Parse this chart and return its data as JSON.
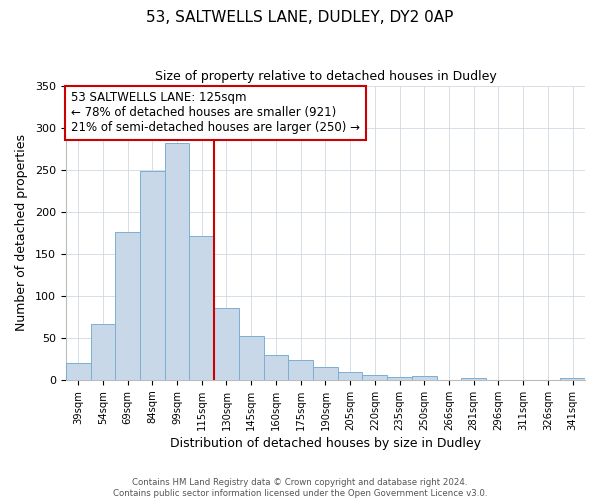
{
  "title": "53, SALTWELLS LANE, DUDLEY, DY2 0AP",
  "subtitle": "Size of property relative to detached houses in Dudley",
  "xlabel": "Distribution of detached houses by size in Dudley",
  "ylabel": "Number of detached properties",
  "bar_labels": [
    "39sqm",
    "54sqm",
    "69sqm",
    "84sqm",
    "99sqm",
    "115sqm",
    "130sqm",
    "145sqm",
    "160sqm",
    "175sqm",
    "190sqm",
    "205sqm",
    "220sqm",
    "235sqm",
    "250sqm",
    "266sqm",
    "281sqm",
    "296sqm",
    "311sqm",
    "326sqm",
    "341sqm"
  ],
  "bar_values": [
    20,
    67,
    176,
    249,
    282,
    171,
    85,
    52,
    30,
    24,
    15,
    10,
    6,
    3,
    5,
    0,
    2,
    0,
    0,
    0,
    2
  ],
  "bar_color": "#c8d8e8",
  "bar_edge_color": "#7bafd4",
  "vline_x": 5.5,
  "vline_color": "#cc0000",
  "annotation_title": "53 SALTWELLS LANE: 125sqm",
  "annotation_line1": "← 78% of detached houses are smaller (921)",
  "annotation_line2": "21% of semi-detached houses are larger (250) →",
  "annotation_box_color": "#ffffff",
  "annotation_box_edge": "#cc0000",
  "ylim": [
    0,
    350
  ],
  "yticks": [
    0,
    50,
    100,
    150,
    200,
    250,
    300,
    350
  ],
  "footer1": "Contains HM Land Registry data © Crown copyright and database right 2024.",
  "footer2": "Contains public sector information licensed under the Open Government Licence v3.0.",
  "grid_color": "#d0d8e0"
}
